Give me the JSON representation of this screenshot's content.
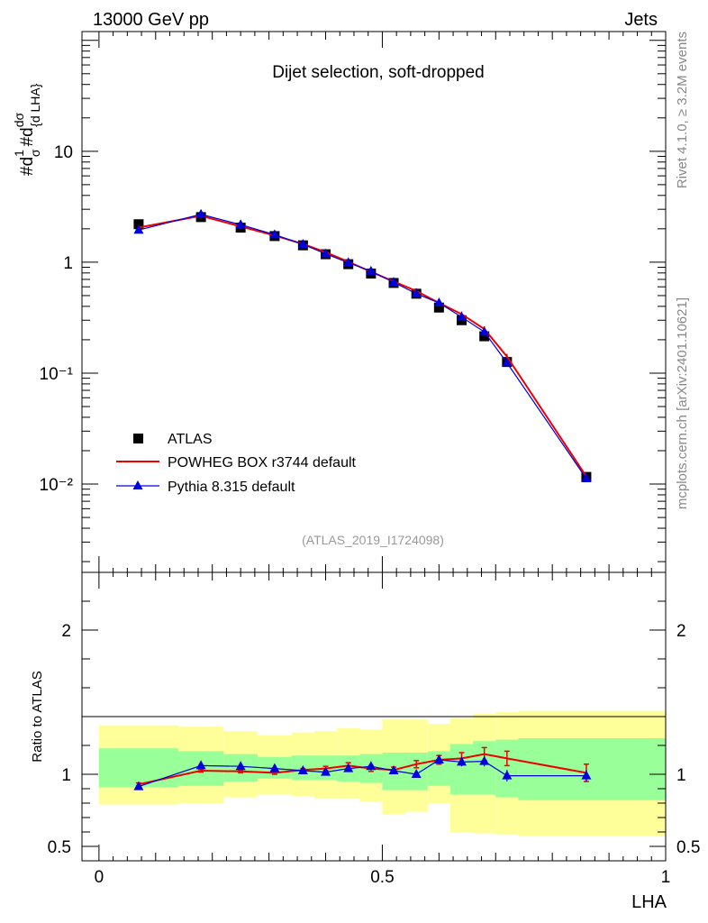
{
  "header": {
    "left": "13000 GeV pp",
    "right": "Jets"
  },
  "side_labels": {
    "rivet": "Rivet 4.1.0, ≥ 3.2M events",
    "mcplots": "mcplots.cern.ch [arXiv:2401.10621]"
  },
  "analysis_id": "(ATLAS_2019_I1724098)",
  "colors": {
    "atlas": "#000000",
    "powheg": "#ee0000",
    "pythia": "#0000dd",
    "band_outer": "#ffff99",
    "band_inner": "#99ff99"
  },
  "chart_data": [
    {
      "type": "line",
      "panel": "main",
      "title": "Dijet selection, soft-dropped",
      "ylabel": "1/σ dσ/d LHA",
      "yscale": "log",
      "xlim": [
        -0.03,
        1.0
      ],
      "ylim": [
        0.0016,
        120
      ],
      "yticks": [
        {
          "value": 10,
          "label": "10"
        },
        {
          "value": 1,
          "label": "1"
        },
        {
          "value": 0.1,
          "label": "10⁻¹"
        },
        {
          "value": 0.01,
          "label": "10⁻²"
        }
      ],
      "x": [
        0.07,
        0.18,
        0.25,
        0.31,
        0.36,
        0.4,
        0.44,
        0.48,
        0.52,
        0.56,
        0.6,
        0.64,
        0.68,
        0.72,
        0.86
      ],
      "series": [
        {
          "name": "ATLAS",
          "style": "markers-square",
          "values": [
            2.2,
            2.55,
            2.05,
            1.72,
            1.42,
            1.18,
            0.96,
            0.79,
            0.65,
            0.52,
            0.39,
            0.3,
            0.215,
            0.126,
            0.0116
          ]
        },
        {
          "name": "POWHEG BOX r3744 default",
          "style": "line",
          "values": [
            2.05,
            2.62,
            2.1,
            1.74,
            1.46,
            1.23,
            1.01,
            0.82,
            0.67,
            0.55,
            0.43,
            0.34,
            0.25,
            0.141,
            0.0117
          ]
        },
        {
          "name": "Pythia 8.315 default",
          "style": "line-triangles",
          "values": [
            1.95,
            2.7,
            2.18,
            1.77,
            1.45,
            1.19,
            0.99,
            0.83,
            0.66,
            0.52,
            0.43,
            0.32,
            0.235,
            0.124,
            0.0112
          ]
        }
      ],
      "legend": [
        {
          "label": "ATLAS",
          "marker": "square"
        },
        {
          "label": "POWHEG BOX r3744 default",
          "marker": "line-red"
        },
        {
          "label": "Pythia 8.315 default",
          "marker": "line-blue-triangle"
        }
      ],
      "legend_position": "bottom-left"
    },
    {
      "type": "line",
      "panel": "ratio",
      "ylabel": "Ratio to ATLAS",
      "xlabel": "LHA",
      "xlim": [
        -0.03,
        1.0
      ],
      "ylim": [
        0.4,
        2.4
      ],
      "yticks_left": [
        {
          "value": 2,
          "label": "2"
        },
        {
          "value": 1,
          "label": "1"
        },
        {
          "value": 0.5,
          "label": "0.5"
        }
      ],
      "yticks_right": [
        {
          "value": 2,
          "label": "2"
        },
        {
          "value": 1,
          "label": "1"
        },
        {
          "value": 0.5,
          "label": "0.5"
        }
      ],
      "xticks": [
        {
          "value": 0,
          "label": "0"
        },
        {
          "value": 0.5,
          "label": "0.5"
        },
        {
          "value": 1,
          "label": "1"
        }
      ],
      "bins": [
        {
          "lo": 0.0,
          "hi": 0.14,
          "inner": [
            0.91,
            1.18
          ],
          "outer": [
            0.79,
            1.34
          ]
        },
        {
          "lo": 0.14,
          "hi": 0.22,
          "inner": [
            0.92,
            1.16
          ],
          "outer": [
            0.8,
            1.33
          ]
        },
        {
          "lo": 0.22,
          "hi": 0.28,
          "inner": [
            0.95,
            1.14
          ],
          "outer": [
            0.84,
            1.3
          ]
        },
        {
          "lo": 0.28,
          "hi": 0.34,
          "inner": [
            0.97,
            1.12
          ],
          "outer": [
            0.86,
            1.27
          ]
        },
        {
          "lo": 0.34,
          "hi": 0.38,
          "inner": [
            0.96,
            1.13
          ],
          "outer": [
            0.85,
            1.29
          ]
        },
        {
          "lo": 0.38,
          "hi": 0.42,
          "inner": [
            0.96,
            1.13
          ],
          "outer": [
            0.83,
            1.3
          ]
        },
        {
          "lo": 0.42,
          "hi": 0.46,
          "inner": [
            0.95,
            1.13
          ],
          "outer": [
            0.83,
            1.32
          ]
        },
        {
          "lo": 0.46,
          "hi": 0.5,
          "inner": [
            0.94,
            1.14
          ],
          "outer": [
            0.81,
            1.31
          ]
        },
        {
          "lo": 0.5,
          "hi": 0.54,
          "inner": [
            0.89,
            1.15
          ],
          "outer": [
            0.72,
            1.38
          ]
        },
        {
          "lo": 0.54,
          "hi": 0.58,
          "inner": [
            0.89,
            1.15
          ],
          "outer": [
            0.74,
            1.38
          ]
        },
        {
          "lo": 0.58,
          "hi": 0.62,
          "inner": [
            0.92,
            1.16
          ],
          "outer": [
            0.8,
            1.35
          ]
        },
        {
          "lo": 0.62,
          "hi": 0.66,
          "inner": [
            0.86,
            1.21
          ],
          "outer": [
            0.6,
            1.39
          ]
        },
        {
          "lo": 0.66,
          "hi": 0.7,
          "inner": [
            0.86,
            1.23
          ],
          "outer": [
            0.59,
            1.42
          ]
        },
        {
          "lo": 0.7,
          "hi": 0.74,
          "inner": [
            0.84,
            1.24
          ],
          "outer": [
            0.58,
            1.43
          ]
        },
        {
          "lo": 0.74,
          "hi": 1.0,
          "inner": [
            0.82,
            1.25
          ],
          "outer": [
            0.57,
            1.44
          ]
        }
      ],
      "x": [
        0.07,
        0.18,
        0.25,
        0.31,
        0.36,
        0.4,
        0.44,
        0.48,
        0.52,
        0.56,
        0.6,
        0.64,
        0.68,
        0.72,
        0.86
      ],
      "series": [
        {
          "name": "POWHEG BOX r3744 default",
          "values": [
            0.93,
            1.025,
            1.02,
            1.01,
            1.03,
            1.04,
            1.06,
            1.04,
            1.03,
            1.07,
            1.1,
            1.11,
            1.14,
            1.11,
            1.01
          ],
          "errors": [
            0.01,
            0.01,
            0.01,
            0.01,
            0.01,
            0.015,
            0.02,
            0.02,
            0.02,
            0.025,
            0.03,
            0.04,
            0.045,
            0.05,
            0.06
          ]
        },
        {
          "name": "Pythia 8.315 default",
          "values": [
            0.915,
            1.06,
            1.055,
            1.04,
            1.025,
            1.015,
            1.04,
            1.055,
            1.025,
            1.0,
            1.1,
            1.085,
            1.09,
            0.99,
            0.99
          ],
          "errors": [
            0.01,
            0.01,
            0.01,
            0.01,
            0.01,
            0.015,
            0.02,
            0.02,
            0.02,
            0.025,
            0.03,
            0.03,
            0.035,
            0.04,
            0.04
          ]
        }
      ]
    }
  ]
}
